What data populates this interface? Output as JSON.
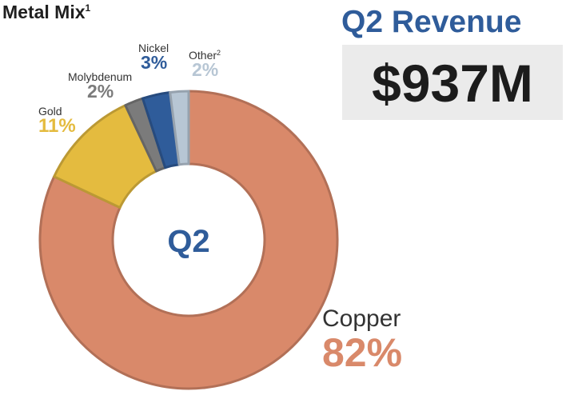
{
  "title": "Metal Mix",
  "title_sup": "1",
  "revenue": {
    "title": "Q2 Revenue",
    "value": "$937M"
  },
  "center_label": "Q2",
  "chart_data": {
    "type": "pie",
    "donut": true,
    "title": "Metal Mix",
    "slices": [
      {
        "name": "Copper",
        "value": 82,
        "label": "82%",
        "color": "#d9896a"
      },
      {
        "name": "Gold",
        "value": 11,
        "label": "11%",
        "color": "#e4bb3f"
      },
      {
        "name": "Molybdenum",
        "value": 2,
        "label": "2%",
        "color": "#7b7b7b"
      },
      {
        "name": "Nickel",
        "value": 3,
        "label": "3%",
        "color": "#2f5c9a"
      },
      {
        "name": "Other",
        "value": 2,
        "label": "2%",
        "color": "#b7c6d4"
      }
    ],
    "other_sup": "2"
  }
}
